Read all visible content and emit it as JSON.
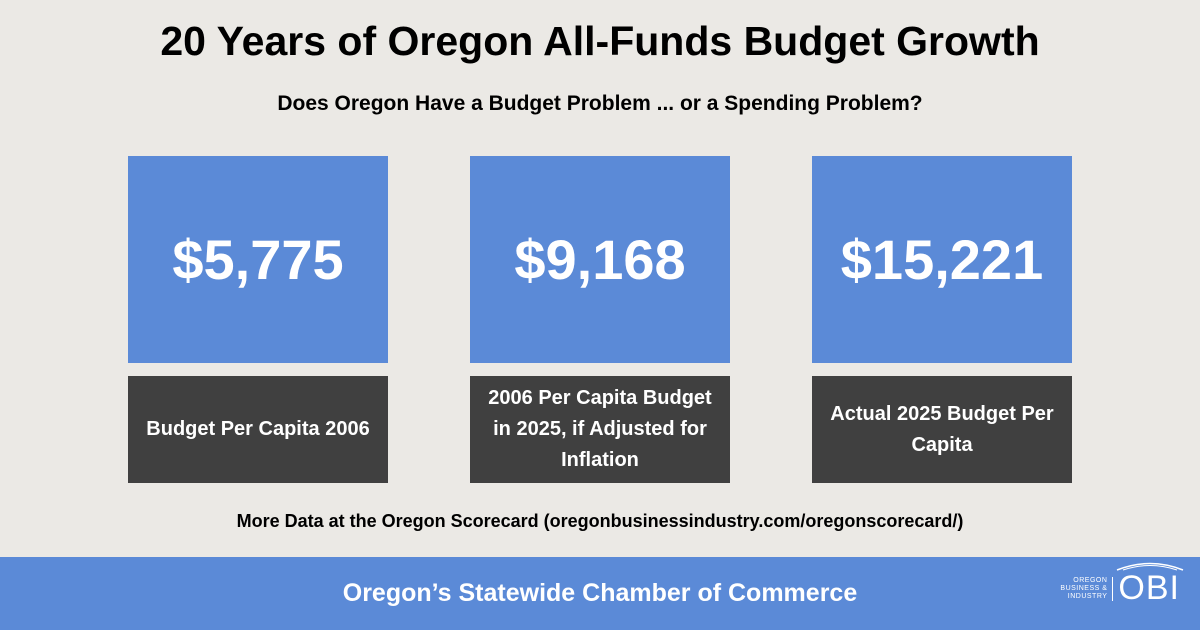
{
  "title": "20 Years of Oregon All-Funds Budget Growth",
  "subtitle": "Does Oregon Have a Budget Problem ... or a Spending Problem?",
  "cards": [
    {
      "value": "$5,775",
      "label": "Budget Per Capita 2006"
    },
    {
      "value": "$9,168",
      "label": "2006 Per Capita Budget in 2025, if Adjusted for Inflation"
    },
    {
      "value": "$15,221",
      "label": "Actual 2025 Budget Per Capita"
    }
  ],
  "more_data": "More Data at the Oregon Scorecard (oregonbusinessindustry.com/oregonscorecard/)",
  "footer": {
    "tagline": "Oregon’s Statewide Chamber of Commerce",
    "logo_small": "OREGON BUSINESS & INDUSTRY",
    "logo_big": "OBI"
  },
  "colors": {
    "accent": "#5b8ad7",
    "dark": "#404040",
    "background": "#ebe9e5"
  }
}
